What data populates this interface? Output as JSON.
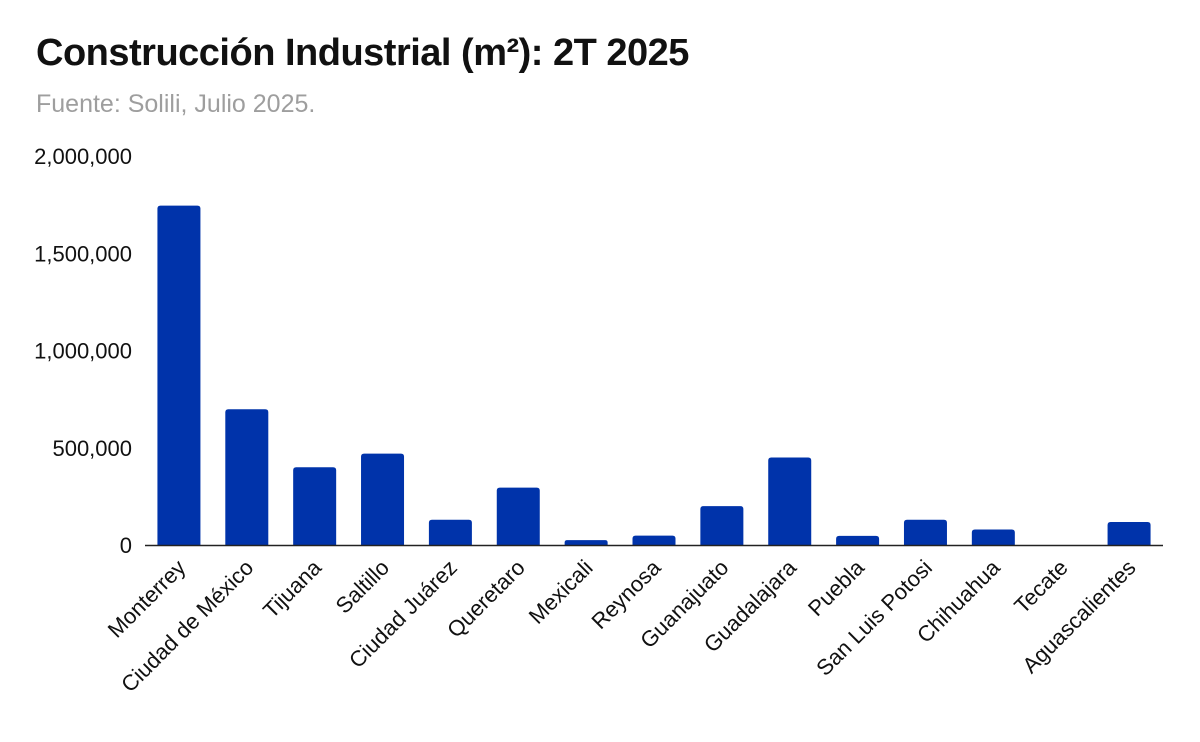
{
  "header": {
    "title": "Construcción Industrial (m²): 2T 2025",
    "subtitle": "Fuente: Solili, Julio 2025."
  },
  "colors": {
    "bar": "#0033AA",
    "axis": "#222222",
    "text": "#111111",
    "subtitle": "#9e9e9e"
  },
  "chart_data": {
    "type": "bar",
    "title": "Construcción Industrial (m²): 2T 2025",
    "subtitle": "Fuente: Solili, Julio 2025.",
    "xlabel": "",
    "ylabel": "",
    "ylim": [
      0,
      2000000
    ],
    "yticks": [
      0,
      500000,
      1000000,
      1500000,
      2000000
    ],
    "ytick_labels": [
      "0",
      "500,000",
      "1,000,000",
      "1,500,000",
      "2,000,000"
    ],
    "grid": false,
    "legend": "none",
    "categories": [
      "Monterrey",
      "Ciudad de México",
      "Tijuana",
      "Saltillo",
      "Ciudad Juárez",
      "Queretaro",
      "Mexicali",
      "Reynosa",
      "Guanajuato",
      "Guadalajara",
      "Puebla",
      "San Luis Potosi",
      "Chihuahua",
      "Tecate",
      "Aguascalientes"
    ],
    "values": [
      1745000,
      698000,
      400000,
      470000,
      130000,
      295000,
      25000,
      48000,
      200000,
      450000,
      47000,
      130000,
      80000,
      0,
      118000
    ]
  }
}
